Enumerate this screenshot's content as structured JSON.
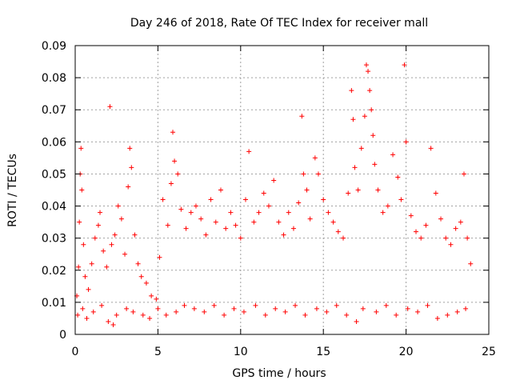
{
  "chart_data": {
    "type": "scatter",
    "title": "Day 246 of 2018, Rate Of TEC Index for receiver mall",
    "xlabel": "GPS time / hours",
    "ylabel": "ROTI / TECUs",
    "xlim": [
      0,
      25
    ],
    "ylim": [
      0,
      0.09
    ],
    "xticks": [
      0,
      5,
      10,
      15,
      20,
      25
    ],
    "xtick_labels": [
      "0",
      "5",
      "10",
      "15",
      "20",
      "25"
    ],
    "yticks": [
      0,
      0.01,
      0.02,
      0.03,
      0.04,
      0.05,
      0.06,
      0.07,
      0.08,
      0.09
    ],
    "ytick_labels": [
      "0",
      "0.01",
      "0.02",
      "0.03",
      "0.04",
      "0.05",
      "0.06",
      "0.07",
      "0.08",
      "0.09"
    ],
    "grid": true,
    "marker": "+",
    "color": "#ff0000",
    "series": [
      {
        "name": "ROTI",
        "points": [
          [
            0.1,
            0.012
          ],
          [
            0.2,
            0.021
          ],
          [
            0.25,
            0.035
          ],
          [
            0.3,
            0.05
          ],
          [
            0.35,
            0.058
          ],
          [
            0.4,
            0.045
          ],
          [
            0.5,
            0.028
          ],
          [
            0.6,
            0.018
          ],
          [
            0.8,
            0.014
          ],
          [
            1.0,
            0.022
          ],
          [
            1.2,
            0.03
          ],
          [
            1.4,
            0.034
          ],
          [
            1.5,
            0.038
          ],
          [
            1.7,
            0.026
          ],
          [
            1.9,
            0.021
          ],
          [
            2.1,
            0.071
          ],
          [
            2.2,
            0.028
          ],
          [
            2.4,
            0.031
          ],
          [
            2.6,
            0.04
          ],
          [
            2.8,
            0.036
          ],
          [
            3.0,
            0.025
          ],
          [
            3.2,
            0.046
          ],
          [
            3.3,
            0.058
          ],
          [
            3.4,
            0.052
          ],
          [
            3.6,
            0.031
          ],
          [
            3.8,
            0.022
          ],
          [
            4.0,
            0.018
          ],
          [
            4.3,
            0.016
          ],
          [
            4.6,
            0.012
          ],
          [
            4.9,
            0.011
          ],
          [
            5.1,
            0.024
          ],
          [
            5.3,
            0.042
          ],
          [
            5.6,
            0.034
          ],
          [
            5.8,
            0.047
          ],
          [
            5.9,
            0.063
          ],
          [
            6.0,
            0.054
          ],
          [
            6.2,
            0.05
          ],
          [
            6.4,
            0.039
          ],
          [
            6.7,
            0.033
          ],
          [
            7.0,
            0.038
          ],
          [
            7.3,
            0.04
          ],
          [
            7.6,
            0.036
          ],
          [
            7.9,
            0.031
          ],
          [
            8.2,
            0.042
          ],
          [
            8.5,
            0.035
          ],
          [
            8.8,
            0.045
          ],
          [
            9.1,
            0.033
          ],
          [
            9.4,
            0.038
          ],
          [
            9.7,
            0.034
          ],
          [
            10.0,
            0.03
          ],
          [
            10.3,
            0.042
          ],
          [
            10.5,
            0.057
          ],
          [
            10.8,
            0.035
          ],
          [
            11.1,
            0.038
          ],
          [
            11.4,
            0.044
          ],
          [
            11.7,
            0.04
          ],
          [
            12.0,
            0.048
          ],
          [
            12.3,
            0.035
          ],
          [
            12.6,
            0.031
          ],
          [
            12.9,
            0.038
          ],
          [
            13.2,
            0.033
          ],
          [
            13.5,
            0.041
          ],
          [
            13.7,
            0.068
          ],
          [
            13.8,
            0.05
          ],
          [
            14.0,
            0.045
          ],
          [
            14.2,
            0.036
          ],
          [
            14.5,
            0.055
          ],
          [
            14.7,
            0.05
          ],
          [
            15.0,
            0.042
          ],
          [
            15.3,
            0.038
          ],
          [
            15.6,
            0.035
          ],
          [
            15.9,
            0.032
          ],
          [
            16.2,
            0.03
          ],
          [
            16.5,
            0.044
          ],
          [
            16.7,
            0.076
          ],
          [
            16.8,
            0.067
          ],
          [
            16.9,
            0.052
          ],
          [
            17.1,
            0.045
          ],
          [
            17.3,
            0.058
          ],
          [
            17.5,
            0.068
          ],
          [
            17.6,
            0.084
          ],
          [
            17.7,
            0.082
          ],
          [
            17.8,
            0.076
          ],
          [
            17.9,
            0.07
          ],
          [
            18.0,
            0.062
          ],
          [
            18.1,
            0.053
          ],
          [
            18.3,
            0.045
          ],
          [
            18.6,
            0.038
          ],
          [
            18.9,
            0.04
          ],
          [
            19.2,
            0.056
          ],
          [
            19.5,
            0.049
          ],
          [
            19.7,
            0.042
          ],
          [
            19.9,
            0.084
          ],
          [
            20.0,
            0.06
          ],
          [
            20.3,
            0.037
          ],
          [
            20.6,
            0.032
          ],
          [
            20.9,
            0.03
          ],
          [
            21.2,
            0.034
          ],
          [
            21.5,
            0.058
          ],
          [
            21.8,
            0.044
          ],
          [
            22.1,
            0.036
          ],
          [
            22.4,
            0.03
          ],
          [
            22.7,
            0.028
          ],
          [
            23.0,
            0.033
          ],
          [
            23.3,
            0.035
          ],
          [
            23.5,
            0.05
          ],
          [
            23.7,
            0.03
          ],
          [
            23.9,
            0.022
          ],
          [
            0.15,
            0.006
          ],
          [
            0.45,
            0.008
          ],
          [
            0.7,
            0.005
          ],
          [
            1.1,
            0.007
          ],
          [
            1.6,
            0.009
          ],
          [
            2.0,
            0.004
          ],
          [
            2.3,
            0.003
          ],
          [
            2.5,
            0.006
          ],
          [
            3.1,
            0.008
          ],
          [
            3.5,
            0.007
          ],
          [
            4.1,
            0.006
          ],
          [
            4.5,
            0.005
          ],
          [
            5.0,
            0.008
          ],
          [
            5.5,
            0.006
          ],
          [
            6.1,
            0.007
          ],
          [
            6.6,
            0.009
          ],
          [
            7.2,
            0.008
          ],
          [
            7.8,
            0.007
          ],
          [
            8.4,
            0.009
          ],
          [
            9.0,
            0.006
          ],
          [
            9.6,
            0.008
          ],
          [
            10.2,
            0.007
          ],
          [
            10.9,
            0.009
          ],
          [
            11.5,
            0.006
          ],
          [
            12.1,
            0.008
          ],
          [
            12.7,
            0.007
          ],
          [
            13.3,
            0.009
          ],
          [
            13.9,
            0.006
          ],
          [
            14.6,
            0.008
          ],
          [
            15.2,
            0.007
          ],
          [
            15.8,
            0.009
          ],
          [
            16.4,
            0.006
          ],
          [
            17.0,
            0.004
          ],
          [
            17.4,
            0.008
          ],
          [
            18.2,
            0.007
          ],
          [
            18.8,
            0.009
          ],
          [
            19.4,
            0.006
          ],
          [
            20.1,
            0.008
          ],
          [
            20.7,
            0.007
          ],
          [
            21.3,
            0.009
          ],
          [
            21.9,
            0.005
          ],
          [
            22.5,
            0.006
          ],
          [
            23.1,
            0.007
          ],
          [
            23.6,
            0.008
          ]
        ]
      }
    ]
  }
}
